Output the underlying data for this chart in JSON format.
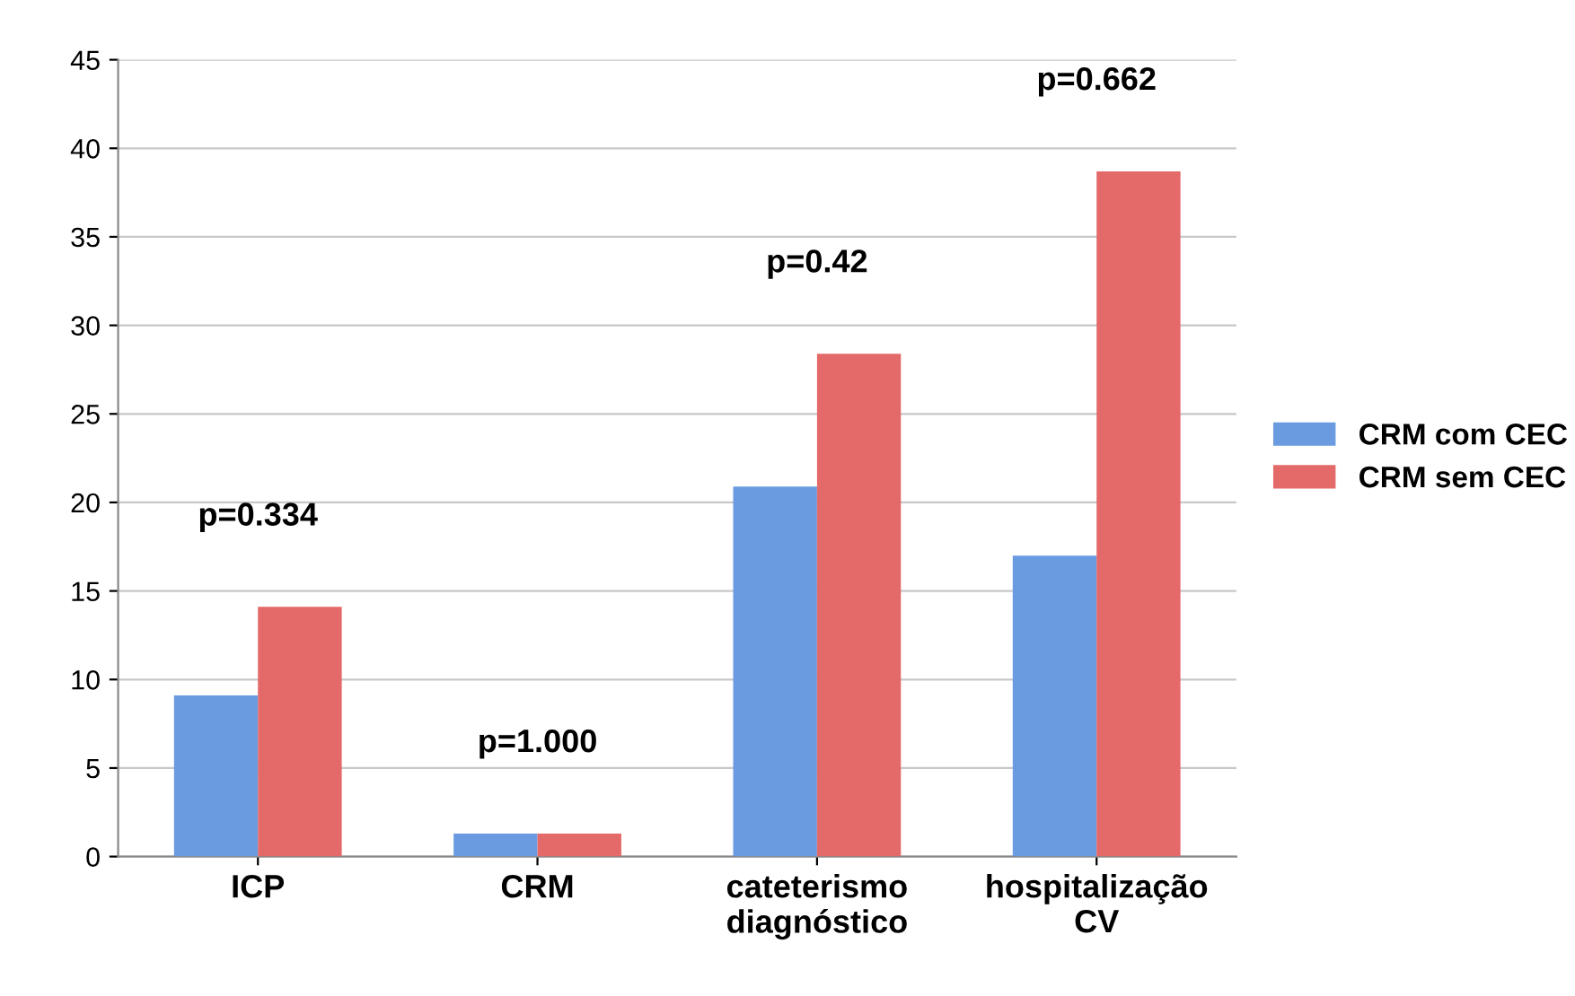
{
  "chart_data": {
    "type": "bar",
    "categories": [
      "ICP",
      "CRM",
      "cateterismo\ndiagnóstico",
      "hospitalização\nCV"
    ],
    "series": [
      {
        "name": "CRM com CEC",
        "color": "#6a9be0",
        "values": [
          9.1,
          1.3,
          20.9,
          17.0
        ]
      },
      {
        "name": "CRM sem CEC",
        "color": "#e46a6a",
        "values": [
          14.1,
          1.3,
          28.4,
          38.7
        ]
      }
    ],
    "ylim": [
      0,
      45
    ],
    "yticks": [
      0,
      5,
      10,
      15,
      20,
      25,
      30,
      35,
      40,
      45
    ],
    "grid": "y",
    "legend": "right",
    "annotations": [
      "p=0.334",
      "p=1.000",
      "p=0.42",
      "p=0.662"
    ]
  }
}
